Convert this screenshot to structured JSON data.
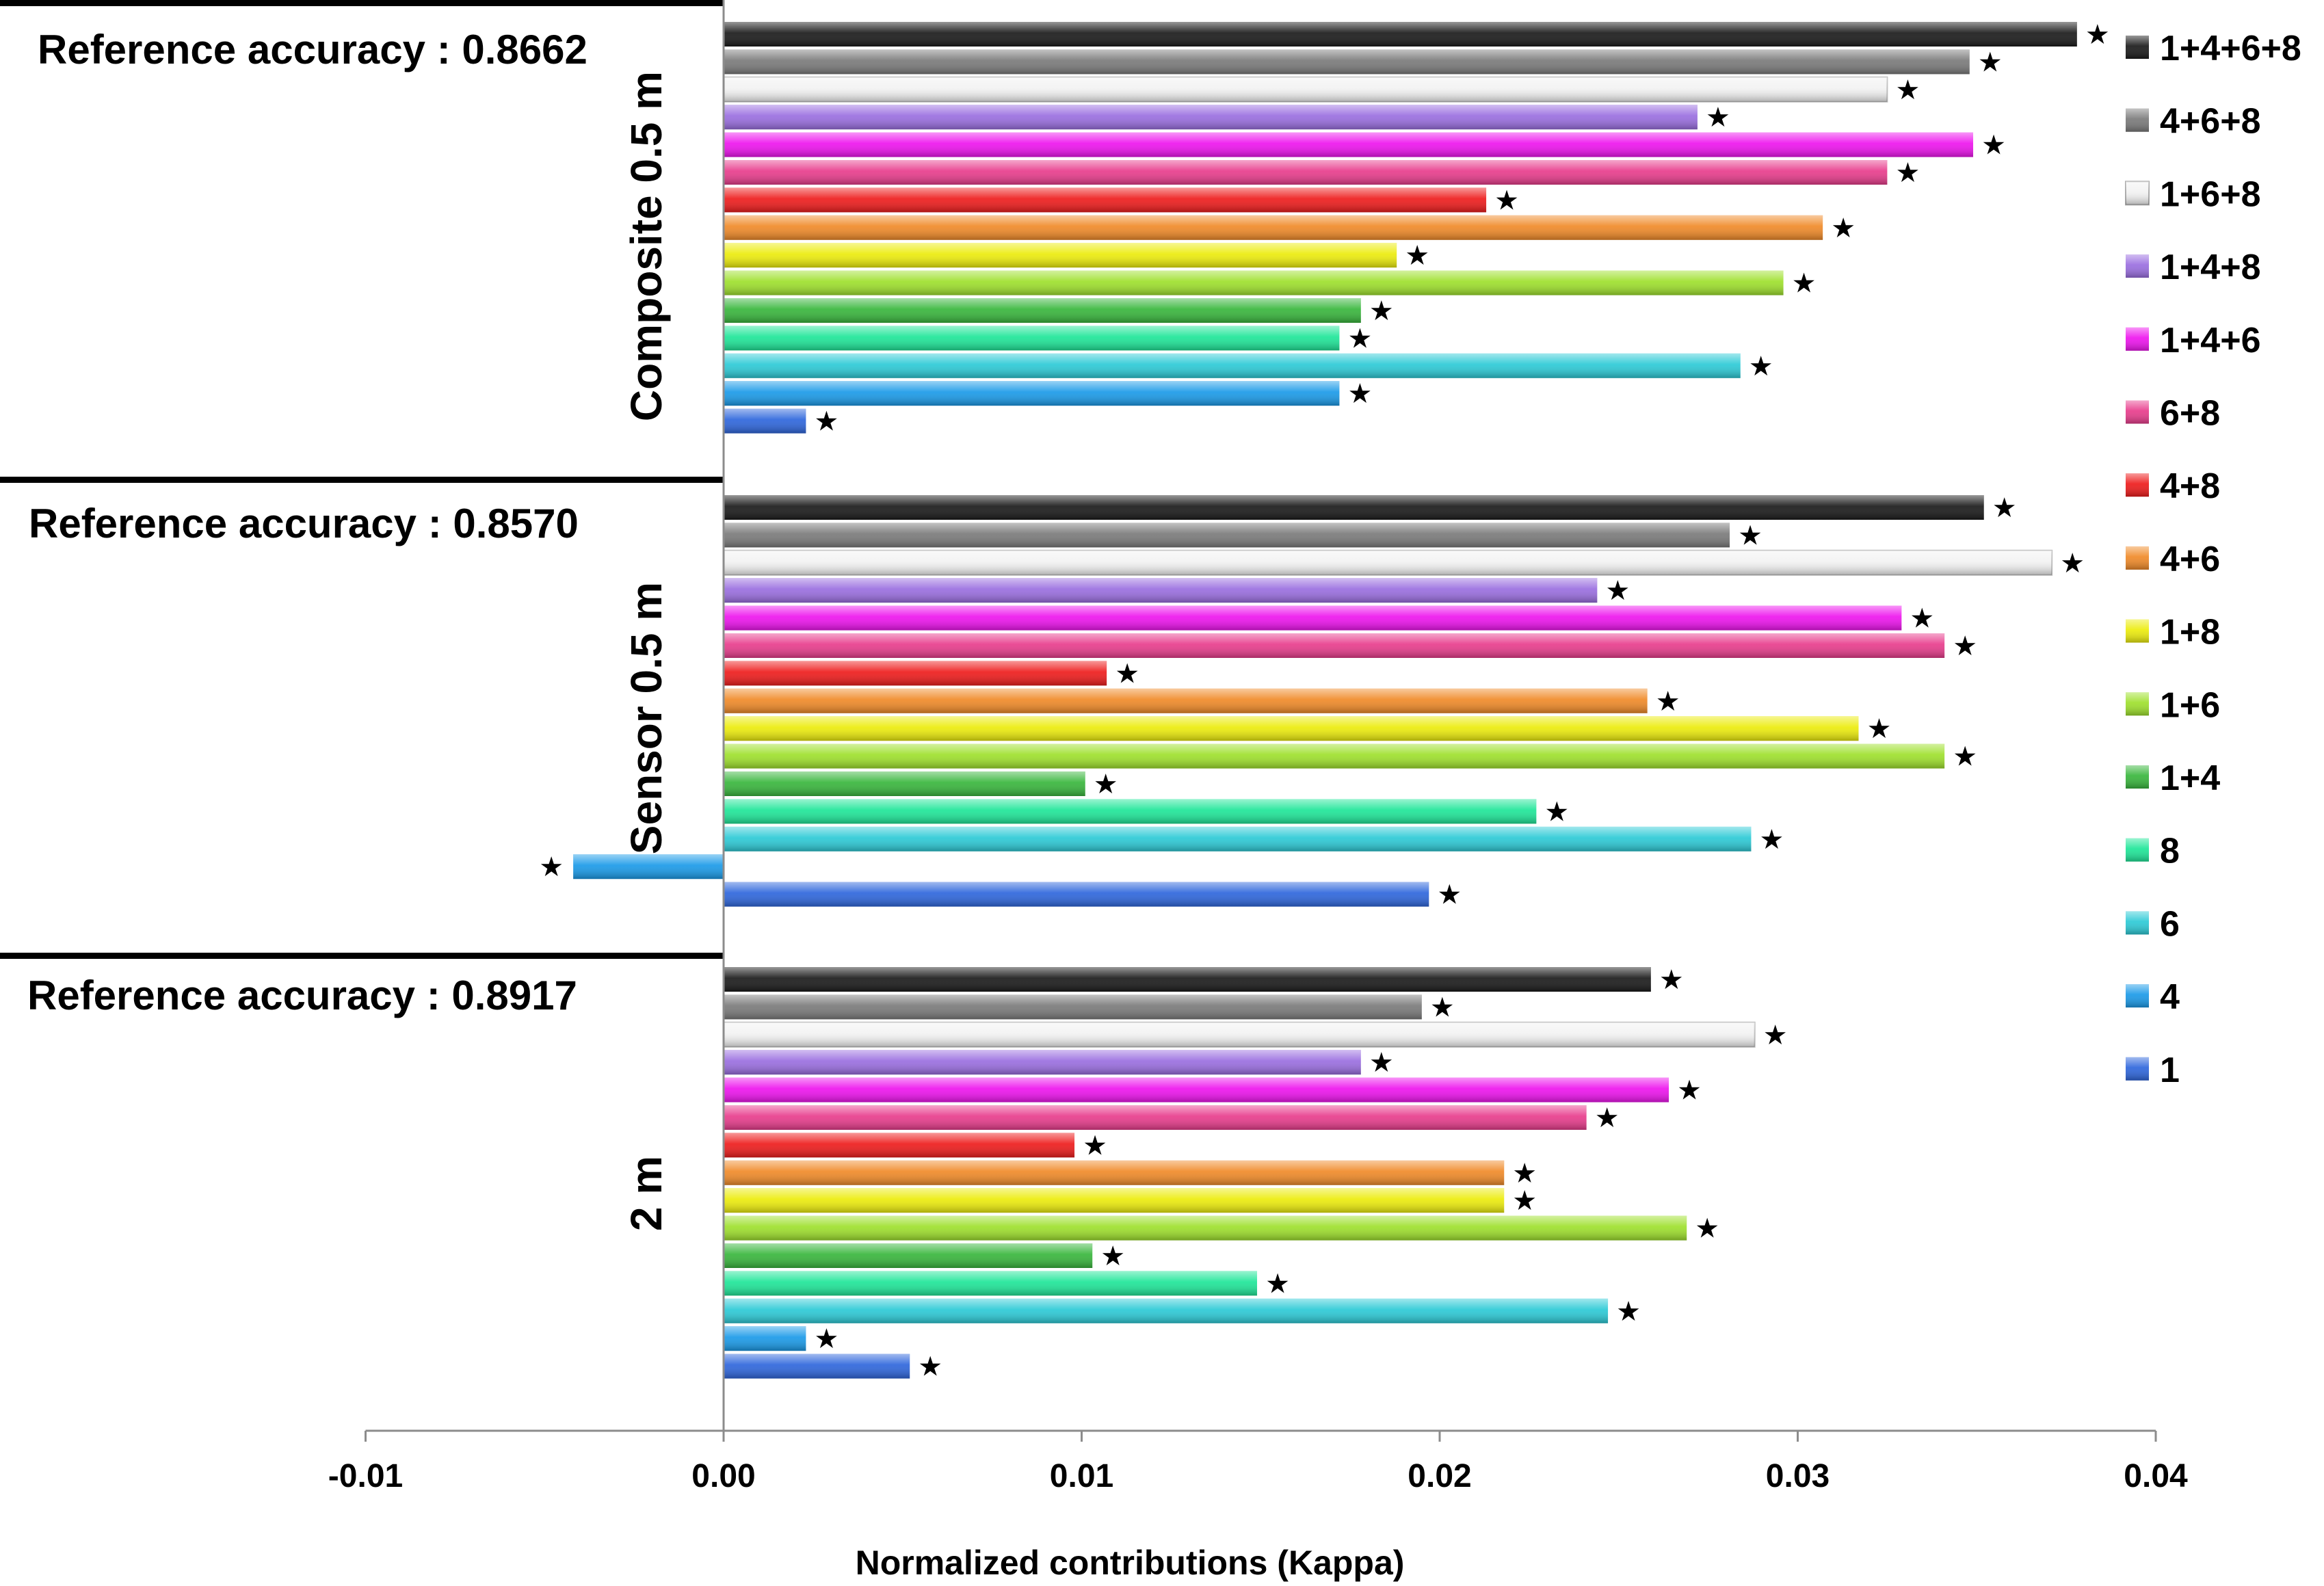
{
  "chart_data": {
    "type": "bar",
    "orientation": "horizontal",
    "xlabel": "Normalized contributions (Kappa)",
    "xlim": [
      -0.01,
      0.04
    ],
    "xticks": [
      -0.01,
      0.0,
      0.01,
      0.02,
      0.03,
      0.04
    ],
    "xtick_labels": [
      "-0.01",
      "0.00",
      "0.01",
      "0.02",
      "0.03",
      "0.04"
    ],
    "significance_marker": "★",
    "categories": [
      "1+4+6+8",
      "4+6+8",
      "1+6+8",
      "1+4+8",
      "1+4+6",
      "6+8",
      "4+8",
      "4+6",
      "1+8",
      "1+6",
      "1+4",
      "8",
      "6",
      "4",
      "1"
    ],
    "colors": {
      "1+4+6+8": "#1a1a1a",
      "4+6+8": "#7a7a7a",
      "1+6+8": "#f2f2f2",
      "1+4+8": "#9a6ee0",
      "1+4+6": "#ee14ee",
      "6+8": "#e83c8c",
      "4+8": "#ee1c1c",
      "4+6": "#f08a28",
      "1+8": "#ecec0c",
      "1+6": "#9ee02c",
      "1+4": "#38b63c",
      "8": "#1ee698",
      "6": "#2ccad6",
      "4": "#1a9ae8",
      "1": "#2e66dc"
    },
    "groups": [
      {
        "label": "Composite 0.5 m",
        "reference": "Reference accuracy : 0.8662",
        "values": [
          0.0378,
          0.0348,
          0.0325,
          0.0272,
          0.0349,
          0.0325,
          0.0213,
          0.0307,
          0.0188,
          0.0296,
          0.0178,
          0.0172,
          0.0284,
          0.0172,
          0.0023
        ],
        "significant": [
          true,
          true,
          true,
          true,
          true,
          true,
          true,
          true,
          true,
          true,
          true,
          true,
          true,
          true,
          true
        ]
      },
      {
        "label": "Sensor 0.5 m",
        "reference": "Reference accuracy : 0.8570",
        "values": [
          0.0352,
          0.0281,
          0.0371,
          0.0244,
          0.0329,
          0.0341,
          0.0107,
          0.0258,
          0.0317,
          0.0341,
          0.0101,
          0.0227,
          0.0287,
          -0.0042,
          0.0197
        ],
        "significant": [
          true,
          true,
          true,
          true,
          true,
          true,
          true,
          true,
          true,
          true,
          true,
          true,
          true,
          true,
          true
        ]
      },
      {
        "label": "2 m",
        "reference": "Reference accuracy : 0.8917",
        "values": [
          0.0259,
          0.0195,
          0.0288,
          0.0178,
          0.0264,
          0.0241,
          0.0098,
          0.0218,
          0.0218,
          0.0269,
          0.0103,
          0.0149,
          0.0247,
          0.0023,
          0.0052
        ],
        "significant": [
          true,
          true,
          true,
          true,
          true,
          true,
          true,
          true,
          true,
          true,
          true,
          true,
          true,
          true,
          true
        ]
      }
    ],
    "legend": [
      "1+4+6+8",
      "4+6+8",
      "1+6+8",
      "1+4+8",
      "1+4+6",
      "6+8",
      "4+8",
      "4+6",
      "1+8",
      "1+6",
      "1+4",
      "8",
      "6",
      "4",
      "1"
    ],
    "legend_position": "right"
  }
}
